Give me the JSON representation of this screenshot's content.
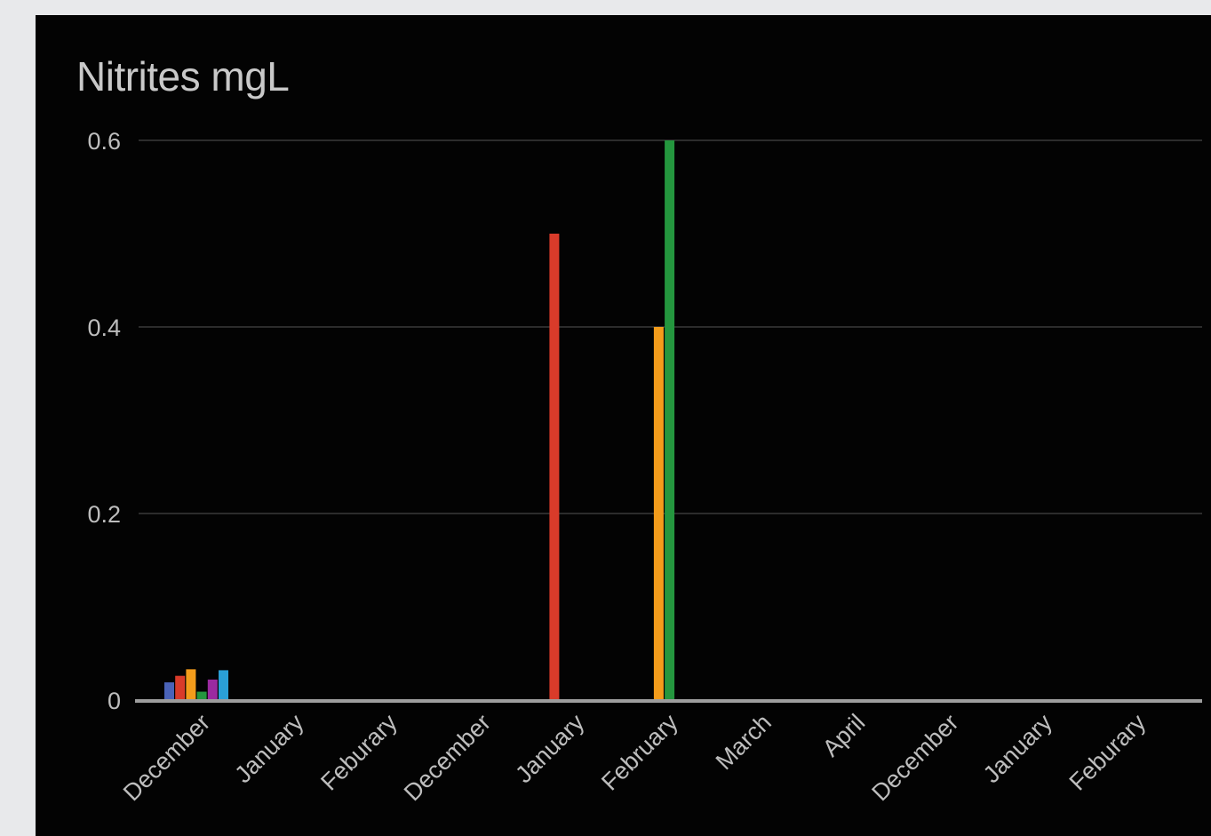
{
  "chart_data": {
    "type": "bar",
    "title": "Nitrites mgL",
    "xlabel": "",
    "ylabel": "",
    "ylim": [
      0,
      0.6
    ],
    "yticks": [
      0,
      0.2,
      0.4,
      0.6
    ],
    "ytick_labels": [
      "0",
      "0.2",
      "0.4",
      "0.6"
    ],
    "grid": true,
    "legend": "none",
    "categories": [
      "December",
      "January",
      "Feburary",
      "December",
      "January",
      "February",
      "March",
      "April",
      "December",
      "January",
      "Feburary"
    ],
    "series": [
      {
        "color": "#4a63b8",
        "values": [
          0.019,
          0,
          0,
          0,
          0,
          0,
          0,
          0,
          0,
          0,
          0
        ]
      },
      {
        "color": "#d93b2a",
        "values": [
          0.026,
          0,
          0,
          0,
          0.5,
          0,
          0,
          0,
          0,
          0,
          0
        ]
      },
      {
        "color": "#f39c1b",
        "values": [
          0.033,
          0,
          0,
          0,
          0,
          0.4,
          0,
          0,
          0,
          0,
          0
        ]
      },
      {
        "color": "#24963e",
        "values": [
          0.009,
          0,
          0,
          0,
          0,
          0.6,
          0,
          0,
          0,
          0,
          0
        ]
      },
      {
        "color": "#9b2aa0",
        "values": [
          0.022,
          0,
          0,
          0,
          0,
          0,
          0,
          0,
          0,
          0,
          0
        ]
      },
      {
        "color": "#2a9fd6",
        "values": [
          0.032,
          0,
          0,
          0,
          0,
          0,
          0,
          0,
          0,
          0,
          0
        ]
      }
    ]
  }
}
